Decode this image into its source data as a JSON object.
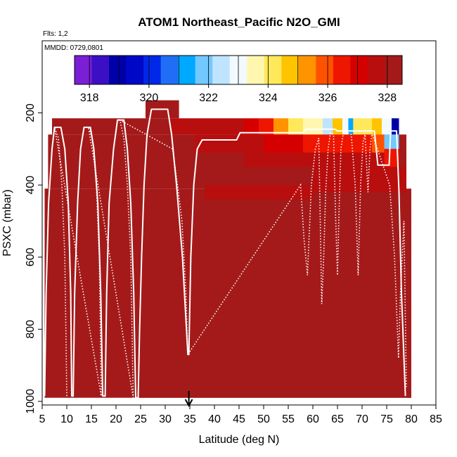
{
  "chart_data": {
    "type": "heatmap",
    "title": "ATOM1 Northeast_Pacific N2O_GMI",
    "flights_note": "Flts: 1,2",
    "date_note": "MMDD: 0729,0801",
    "xlabel": "Latitude (deg N)",
    "ylabel": "PSXC (mbar)",
    "xlim": [
      5,
      85
    ],
    "ylim": [
      1010,
      0
    ],
    "x_ticks": [
      5,
      10,
      15,
      20,
      25,
      30,
      35,
      40,
      45,
      50,
      55,
      60,
      65,
      70,
      75,
      80,
      85
    ],
    "y_ticks": [
      200,
      400,
      600,
      800,
      1000
    ],
    "colorbar": {
      "min": 317.5,
      "max": 328.5,
      "tick_values": [
        318,
        320,
        322,
        324,
        326,
        328
      ],
      "colors": [
        "#7a1fd6",
        "#3d0fc4",
        "#0000a8",
        "#0008c8",
        "#0028e8",
        "#1f6ef5",
        "#00a8ff",
        "#73c8ff",
        "#bfe4ff",
        "#f2faff",
        "#fff7b0",
        "#ffe85a",
        "#ffc400",
        "#ff9300",
        "#ff5200",
        "#ee1600",
        "#d40000",
        "#b80e0e",
        "#a41a1a"
      ]
    },
    "marker": {
      "latitude": 34.8,
      "description": "arrow"
    },
    "background_value": 328.2,
    "cells": [
      {
        "x0": 5.5,
        "x1": 80,
        "y0": 410,
        "y1": 990,
        "v": 328.2
      },
      {
        "x0": 6.2,
        "x1": 79,
        "y0": 260,
        "y1": 410,
        "v": 328.2
      },
      {
        "x0": 7.0,
        "x1": 31,
        "y0": 215,
        "y1": 260,
        "v": 328.2
      },
      {
        "x0": 26.0,
        "x1": 32.8,
        "y0": 165,
        "y1": 215,
        "v": 328.2
      },
      {
        "x0": 31.0,
        "x1": 42,
        "y0": 215,
        "y1": 260,
        "v": 327.9
      },
      {
        "x0": 42.0,
        "x1": 46,
        "y0": 215,
        "y1": 260,
        "v": 327.5
      },
      {
        "x0": 46.0,
        "x1": 49,
        "y0": 215,
        "y1": 260,
        "v": 327.0
      },
      {
        "x0": 49.0,
        "x1": 52,
        "y0": 215,
        "y1": 260,
        "v": 326.2
      },
      {
        "x0": 52.0,
        "x1": 55,
        "y0": 215,
        "y1": 260,
        "v": 325.2
      },
      {
        "x0": 55.0,
        "x1": 58,
        "y0": 215,
        "y1": 260,
        "v": 324.2
      },
      {
        "x0": 58.0,
        "x1": 62,
        "y0": 215,
        "y1": 260,
        "v": 323.4
      },
      {
        "x0": 62.0,
        "x1": 64,
        "y0": 215,
        "y1": 260,
        "v": 322.6
      },
      {
        "x0": 64.0,
        "x1": 66,
        "y0": 215,
        "y1": 260,
        "v": 324.5
      },
      {
        "x0": 66.0,
        "x1": 67.2,
        "y0": 215,
        "y1": 260,
        "v": 323.2
      },
      {
        "x0": 67.2,
        "x1": 68.2,
        "y0": 215,
        "y1": 260,
        "v": 321.3
      },
      {
        "x0": 68.2,
        "x1": 72,
        "y0": 215,
        "y1": 260,
        "v": 324.0
      },
      {
        "x0": 72.0,
        "x1": 74,
        "y0": 215,
        "y1": 260,
        "v": 324.8
      },
      {
        "x0": 74.0,
        "x1": 76,
        "y0": 215,
        "y1": 260,
        "v": 323.0
      },
      {
        "x0": 76.0,
        "x1": 77.5,
        "y0": 215,
        "y1": 260,
        "v": 318.8
      },
      {
        "x0": 36.0,
        "x1": 42,
        "y0": 260,
        "y1": 310,
        "v": 327.8
      },
      {
        "x0": 42.0,
        "x1": 50,
        "y0": 260,
        "y1": 310,
        "v": 327.4
      },
      {
        "x0": 50.0,
        "x1": 58,
        "y0": 260,
        "y1": 310,
        "v": 326.9
      },
      {
        "x0": 58.0,
        "x1": 66,
        "y0": 260,
        "y1": 310,
        "v": 326.5
      },
      {
        "x0": 66.0,
        "x1": 72,
        "y0": 260,
        "y1": 310,
        "v": 326.3
      },
      {
        "x0": 72.0,
        "x1": 74.5,
        "y0": 260,
        "y1": 310,
        "v": 325.8
      },
      {
        "x0": 74.5,
        "x1": 77.5,
        "y0": 260,
        "y1": 300,
        "v": 321.8
      },
      {
        "x0": 74.5,
        "x1": 77.5,
        "y0": 300,
        "y1": 350,
        "v": 326.2
      },
      {
        "x0": 46.0,
        "x1": 62,
        "y0": 310,
        "y1": 350,
        "v": 327.8
      },
      {
        "x0": 62.0,
        "x1": 72,
        "y0": 310,
        "y1": 350,
        "v": 327.6
      },
      {
        "x0": 72.0,
        "x1": 74.5,
        "y0": 310,
        "y1": 350,
        "v": 327.5
      },
      {
        "x0": 36.0,
        "x1": 50,
        "y0": 520,
        "y1": 580,
        "v": 328.35
      },
      {
        "x0": 24.0,
        "x1": 33,
        "y0": 720,
        "y1": 990,
        "v": 328.0
      },
      {
        "x0": 33.0,
        "x1": 80,
        "y0": 720,
        "y1": 990,
        "v": 328.0
      },
      {
        "x0": 38.0,
        "x1": 60,
        "y0": 400,
        "y1": 440,
        "v": 327.9
      },
      {
        "x0": 60.0,
        "x1": 79,
        "y0": 350,
        "y1": 420,
        "v": 327.8
      },
      {
        "x0": 79.0,
        "x1": 80,
        "y0": 470,
        "y1": 990,
        "v": 328.2
      }
    ],
    "flight_track": [
      [
        5.5,
        985
      ],
      [
        5.8,
        700
      ],
      [
        6.3,
        450
      ],
      [
        7.0,
        300
      ],
      [
        7.5,
        240
      ],
      [
        8.8,
        240
      ],
      [
        9.6,
        300
      ],
      [
        10.3,
        450
      ],
      [
        10.8,
        700
      ],
      [
        11.0,
        985
      ],
      [
        11.3,
        985
      ],
      [
        11.6,
        700
      ],
      [
        12.2,
        450
      ],
      [
        12.8,
        300
      ],
      [
        13.5,
        240
      ],
      [
        14.8,
        240
      ],
      [
        15.5,
        300
      ],
      [
        16.3,
        450
      ],
      [
        16.9,
        700
      ],
      [
        17.3,
        985
      ],
      [
        17.8,
        985
      ],
      [
        18.1,
        700
      ],
      [
        18.6,
        450
      ],
      [
        19.5,
        300
      ],
      [
        20.3,
        220
      ],
      [
        21.6,
        220
      ],
      [
        22.3,
        300
      ],
      [
        23.0,
        450
      ],
      [
        23.6,
        700
      ],
      [
        24.0,
        990
      ],
      [
        24.5,
        990
      ],
      [
        24.8,
        800
      ],
      [
        25.2,
        600
      ],
      [
        25.7,
        400
      ],
      [
        26.3,
        260
      ],
      [
        27.2,
        190
      ],
      [
        30.5,
        190
      ],
      [
        31.3,
        260
      ],
      [
        32.3,
        400
      ],
      [
        33.5,
        600
      ],
      [
        34.6,
        870
      ],
      [
        34.8,
        870
      ],
      [
        35.2,
        600
      ],
      [
        35.8,
        400
      ],
      [
        36.5,
        300
      ],
      [
        37.5,
        275
      ],
      [
        44.5,
        275
      ],
      [
        45.2,
        255
      ],
      [
        58.0,
        255
      ],
      [
        58.5,
        245
      ],
      [
        64.5,
        245
      ],
      [
        65.0,
        250
      ],
      [
        72.5,
        250
      ],
      [
        73.2,
        345
      ],
      [
        75.5,
        345
      ],
      [
        75.8,
        250
      ],
      [
        77.0,
        250
      ],
      [
        77.5,
        420
      ],
      [
        78.0,
        700
      ],
      [
        78.8,
        985
      ]
    ],
    "profile_track": [
      [
        10.0,
        985
      ],
      [
        9.6,
        600
      ],
      [
        9.0,
        400
      ],
      [
        8.3,
        270
      ],
      [
        7.5,
        240
      ],
      [
        17.0,
        985
      ],
      [
        16.6,
        600
      ],
      [
        16.0,
        400
      ],
      [
        15.2,
        270
      ],
      [
        14.4,
        240
      ],
      [
        23.5,
        990
      ],
      [
        23.0,
        600
      ],
      [
        22.3,
        400
      ],
      [
        21.6,
        270
      ],
      [
        20.8,
        220
      ],
      [
        31.5,
        300
      ],
      [
        32.5,
        400
      ],
      [
        33.4,
        500
      ],
      [
        34.2,
        700
      ],
      [
        34.6,
        870
      ],
      [
        57.5,
        400
      ],
      [
        58.2,
        550
      ],
      [
        58.9,
        650
      ],
      [
        59.7,
        400
      ],
      [
        60.5,
        300
      ],
      [
        61.2,
        270
      ],
      [
        61.8,
        730
      ],
      [
        62.2,
        600
      ],
      [
        62.6,
        420
      ],
      [
        63.1,
        300
      ],
      [
        63.6,
        255
      ],
      [
        64.2,
        260
      ],
      [
        64.6,
        480
      ],
      [
        65.0,
        650
      ],
      [
        65.3,
        480
      ],
      [
        65.7,
        300
      ],
      [
        66.2,
        255
      ],
      [
        67.0,
        255
      ],
      [
        67.8,
        260
      ],
      [
        68.6,
        400
      ],
      [
        69.2,
        650
      ],
      [
        69.7,
        400
      ],
      [
        70.2,
        280
      ],
      [
        70.6,
        260
      ],
      [
        71.2,
        420
      ],
      [
        71.6,
        300
      ],
      [
        72.0,
        255
      ],
      [
        75.6,
        400
      ],
      [
        76.6,
        600
      ],
      [
        77.4,
        880
      ],
      [
        77.8,
        700
      ],
      [
        78.5,
        500
      ],
      [
        79.0,
        960
      ]
    ]
  }
}
